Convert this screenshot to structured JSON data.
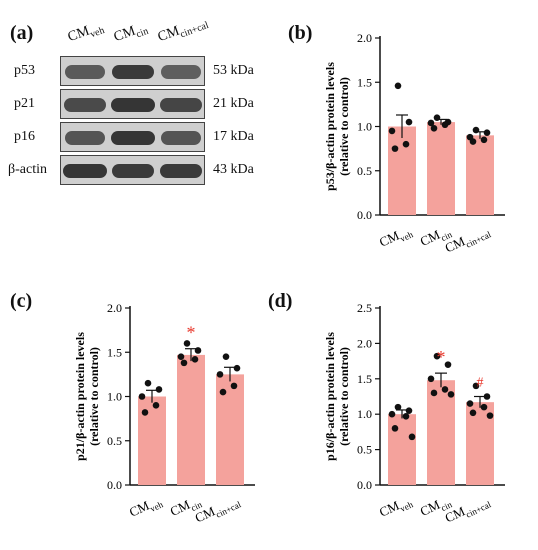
{
  "panels": {
    "a": "(a)",
    "b": "(b)",
    "c": "(c)",
    "d": "(d)"
  },
  "lanes": [
    {
      "main": "CM",
      "sub": "veh"
    },
    {
      "main": "CM",
      "sub": "cin"
    },
    {
      "main": "CM",
      "sub": "cin+cal"
    }
  ],
  "blots": [
    {
      "protein": "p53",
      "kda": "53 kDa",
      "intensity": [
        0.55,
        0.85,
        0.5
      ]
    },
    {
      "protein": "p21",
      "kda": "21 kDa",
      "intensity": [
        0.7,
        0.9,
        0.75
      ]
    },
    {
      "protein": "p16",
      "kda": "17 kDa",
      "intensity": [
        0.6,
        0.9,
        0.6
      ]
    },
    {
      "protein": "β-actin",
      "kda": "43 kDa",
      "intensity": [
        0.9,
        0.85,
        0.85
      ]
    }
  ],
  "colors": {
    "bar": "#f4a29c",
    "sig_star": "#e8362a",
    "sig_hash": "#e8362a",
    "band": "#222222"
  },
  "chart_data": [
    {
      "panel": "b",
      "type": "bar",
      "categories": [
        {
          "main": "CM",
          "sub": "veh"
        },
        {
          "main": "CM",
          "sub": "cin"
        },
        {
          "main": "CM",
          "sub": "cin+cal"
        }
      ],
      "values": [
        1.0,
        1.05,
        0.9
      ],
      "errors": [
        0.13,
        0.03,
        0.04
      ],
      "points": [
        [
          1.46,
          1.05,
          0.95,
          0.8,
          0.75
        ],
        [
          1.1,
          1.05,
          1.04,
          1.02,
          0.98
        ],
        [
          0.96,
          0.93,
          0.88,
          0.85,
          0.83
        ]
      ],
      "ylabel_1": "p53/β-actin protein levels",
      "ylabel_2": "(relative to control)",
      "ylim": [
        0,
        2.0
      ],
      "yticks": [
        "0.0",
        "0.5",
        "1.0",
        "1.5",
        "2.0"
      ],
      "sig": [
        "",
        "",
        ""
      ]
    },
    {
      "panel": "c",
      "type": "bar",
      "categories": [
        {
          "main": "CM",
          "sub": "veh"
        },
        {
          "main": "CM",
          "sub": "cin"
        },
        {
          "main": "CM",
          "sub": "cin+cal"
        }
      ],
      "values": [
        1.0,
        1.47,
        1.25
      ],
      "errors": [
        0.07,
        0.07,
        0.08
      ],
      "points": [
        [
          1.15,
          1.08,
          1.0,
          0.9,
          0.82
        ],
        [
          1.6,
          1.52,
          1.45,
          1.42,
          1.38
        ],
        [
          1.45,
          1.32,
          1.25,
          1.12,
          1.05
        ]
      ],
      "ylabel_1": "p21/β-actin protein levels",
      "ylabel_2": "(relative to control)",
      "ylim": [
        0,
        2.0
      ],
      "yticks": [
        "0.0",
        "0.5",
        "1.0",
        "1.5",
        "2.0"
      ],
      "sig": [
        "",
        "*",
        ""
      ]
    },
    {
      "panel": "d",
      "type": "bar",
      "categories": [
        {
          "main": "CM",
          "sub": "veh"
        },
        {
          "main": "CM",
          "sub": "cin"
        },
        {
          "main": "CM",
          "sub": "cin+cal"
        }
      ],
      "values": [
        1.0,
        1.48,
        1.17
      ],
      "errors": [
        0.06,
        0.1,
        0.08
      ],
      "points": [
        [
          1.1,
          1.05,
          1.0,
          0.97,
          0.8,
          0.68
        ],
        [
          1.82,
          1.7,
          1.5,
          1.35,
          1.3,
          1.28
        ],
        [
          1.4,
          1.25,
          1.15,
          1.1,
          1.02,
          0.98
        ]
      ],
      "ylabel_1": "p16/β-actin protein levels",
      "ylabel_2": "(relative to control)",
      "ylim": [
        0,
        2.5
      ],
      "yticks": [
        "0.0",
        "0.5",
        "1.0",
        "1.5",
        "2.0",
        "2.5"
      ],
      "sig": [
        "",
        "*",
        "#"
      ]
    }
  ]
}
